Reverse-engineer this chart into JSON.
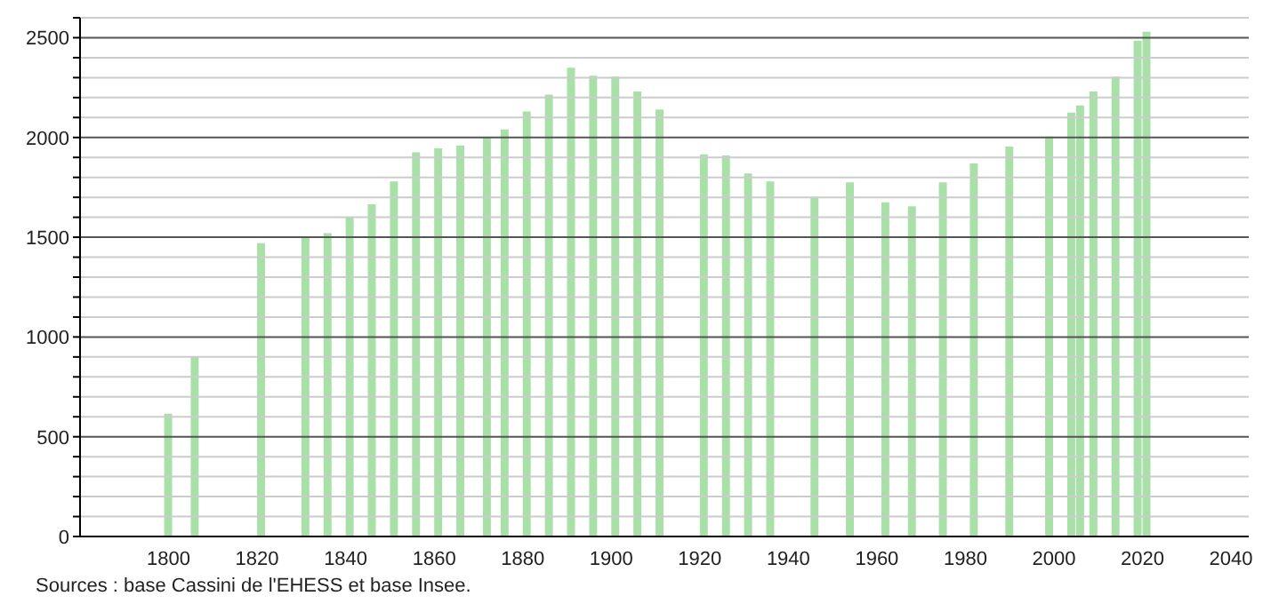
{
  "chart_data": {
    "type": "bar",
    "x": [
      1800,
      1806,
      1821,
      1831,
      1836,
      1841,
      1846,
      1851,
      1856,
      1861,
      1866,
      1872,
      1876,
      1881,
      1886,
      1891,
      1896,
      1901,
      1906,
      1911,
      1921,
      1926,
      1931,
      1936,
      1946,
      1954,
      1962,
      1968,
      1975,
      1982,
      1990,
      1999,
      2004,
      2006,
      2009,
      2014,
      2019,
      2021
    ],
    "values": [
      615,
      900,
      1470,
      1500,
      1520,
      1600,
      1665,
      1780,
      1925,
      1945,
      1960,
      2000,
      2040,
      2130,
      2215,
      2350,
      2310,
      2305,
      2230,
      2140,
      1915,
      1910,
      1820,
      1780,
      1700,
      1775,
      1675,
      1655,
      1775,
      1870,
      1955,
      2005,
      2125,
      2160,
      2230,
      2305,
      2485,
      2530
    ],
    "color": "#a8e0a8",
    "xlim": [
      1780,
      2044
    ],
    "xticks": [
      1800,
      1820,
      1840,
      1860,
      1880,
      1900,
      1920,
      1940,
      1960,
      1980,
      2000,
      2020,
      2040
    ],
    "ylim": [
      0,
      2600
    ],
    "yticks": [
      0,
      {
        "value": 100,
        "label": null
      },
      {
        "value": 200,
        "label": null
      },
      {
        "value": 300,
        "label": null
      },
      {
        "value": 400,
        "label": null
      },
      500,
      {
        "value": 600,
        "label": null
      },
      {
        "value": 700,
        "label": null
      },
      {
        "value": 800,
        "label": null
      },
      {
        "value": 900,
        "label": null
      },
      1000,
      {
        "value": 1100,
        "label": null
      },
      {
        "value": 1200,
        "label": null
      },
      {
        "value": 1300,
        "label": null
      },
      {
        "value": 1400,
        "label": null
      },
      1500,
      {
        "value": 1600,
        "label": null
      },
      {
        "value": 1700,
        "label": null
      },
      {
        "value": 1800,
        "label": null
      },
      {
        "value": 1900,
        "label": null
      },
      2000,
      {
        "value": 2100,
        "label": null
      },
      {
        "value": 2200,
        "label": null
      },
      {
        "value": 2300,
        "label": null
      },
      {
        "value": 2400,
        "label": null
      },
      2500,
      {
        "value": 2600,
        "label": null
      }
    ],
    "grid": "y",
    "annotations": [
      "Sources : base Cassini de l'EHESS et base Insee."
    ]
  }
}
